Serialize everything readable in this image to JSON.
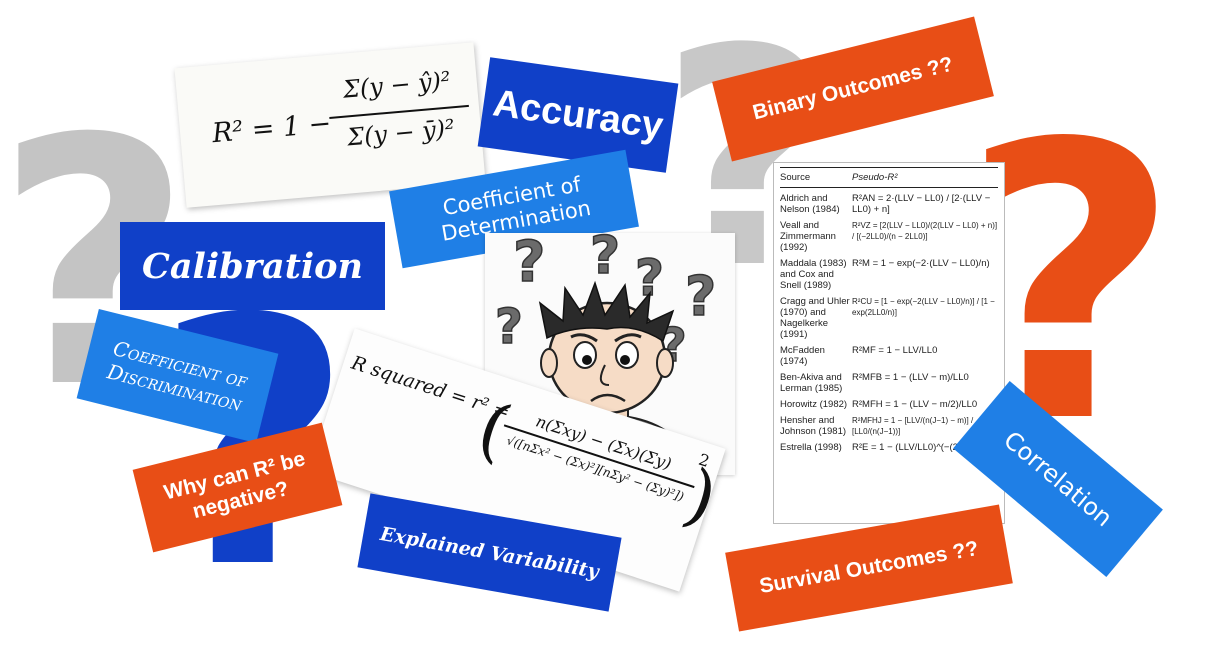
{
  "labels": {
    "accuracy": "Accuracy",
    "binary_outcomes": "Binary Outcomes ??",
    "coef_determination": "Coefficient of Determination",
    "calibration": "Calibration",
    "coef_discrimination": "Coefficient of Discrimination",
    "why_negative": "Why can R² be negative?",
    "explained_variability": "Explained Variability",
    "survival_outcomes": "Survival Outcomes ??",
    "correlation": "Correlation"
  },
  "formulas": {
    "r2_lhs": "R² = 1 −",
    "r2_num": "Σ(y − ŷ)²",
    "r2_den": "Σ(y − ȳ)²",
    "rsq_lhs": "R squared = r² =",
    "rsq_num": "n(Σxy) − (Σx)(Σy)",
    "rsq_den": "√([nΣx² − (Σx)²][nΣy² − (Σy)²])",
    "rsq_pow": "2"
  },
  "pseudo_table": {
    "col_source": "Source",
    "col_pseudo": "Pseudo-R²",
    "rows": [
      {
        "source": "Aldrich and Nelson (1984)",
        "formula": "R²AN = 2·(LLV − LL0) / [2·(LLV − LL0) + n]"
      },
      {
        "source": "Veall and Zimmermann (1992)",
        "formula": "R²VZ = [2(LLV − LL0)/(2(LLV − LL0) + n)] / [(−2LL0)/(n − 2LL0)]"
      },
      {
        "source": "Maddala (1983) and Cox and Snell (1989)",
        "formula": "R²M = 1 − exp(−2·(LLV − LL0)/n)"
      },
      {
        "source": "Cragg and Uhler (1970) and Nagelkerke (1991)",
        "formula": "R²CU = [1 − exp(−2(LLV − LL0)/n)] / [1 − exp(2LL0/n)]"
      },
      {
        "source": "McFadden (1974)",
        "formula": "R²MF = 1 − LLV/LL0"
      },
      {
        "source": "Ben-Akiva and Lerman (1985)",
        "formula": "R²MFB = 1 − (LLV − m)/LL0"
      },
      {
        "source": "Horowitz (1982)",
        "formula": "R²MFH = 1 − (LLV − m/2)/LL0"
      },
      {
        "source": "Hensher and Johnson (1981)",
        "formula": "R²MFHJ = 1 − [LLV/(n(J−1) − m)] / [LL0/(n(J−1))]"
      },
      {
        "source": "Estrella (1998)",
        "formula": "R²E = 1 − (LLV/LL0)^(−(2/n)LL0)"
      }
    ]
  },
  "icons": {
    "background": [
      "question-mark-icon"
    ],
    "cartoon": "confused-person-icon"
  },
  "colors": {
    "dark_blue": "#1040c8",
    "light_blue": "#1f7fe6",
    "orange": "#e84e16",
    "gray": "#c4c4c4"
  }
}
